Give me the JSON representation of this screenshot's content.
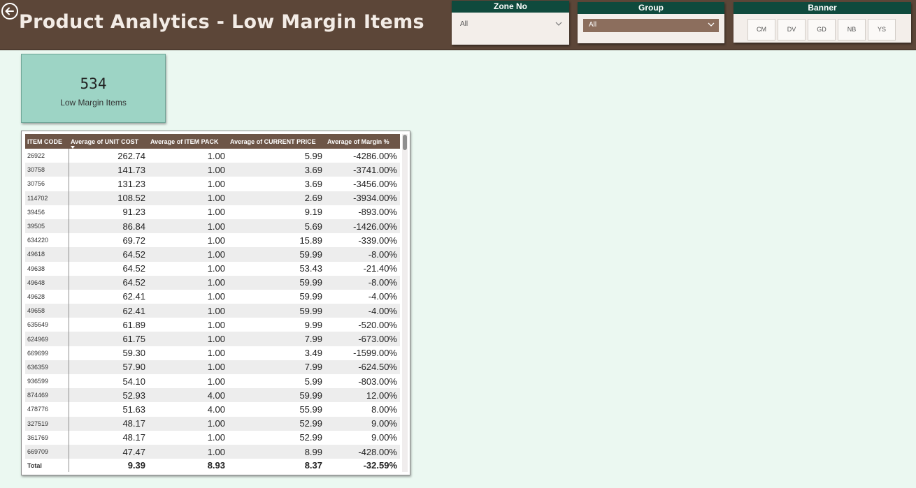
{
  "header": {
    "title": "Product Analytics - Low Margin Items"
  },
  "colors": {
    "header_bg": "#5c4638",
    "slicer_title_bg": "#0f4a3d",
    "kpi_bg": "#9dd4c5",
    "table_header_bg": "#6d5547",
    "page_bg": "#ebf8f1"
  },
  "icons": {
    "back": "arrow-left-circle-icon",
    "dropdown": "chevron-down-icon",
    "sort": "sort-descending-icon"
  },
  "zone_slicer": {
    "title": "Zone No",
    "value": "All"
  },
  "group_slicer": {
    "title": "Group",
    "value": "All"
  },
  "banner_slicer": {
    "title": "Banner",
    "buttons": [
      "CM",
      "DV",
      "GD",
      "NB",
      "YS"
    ]
  },
  "kpi": {
    "value": "534",
    "label": "Low Margin Items"
  },
  "table": {
    "headers": [
      "ITEM CODE",
      "Average of UNIT COST",
      "Average of ITEM PACK",
      "Average of CURRENT PRICE",
      "Average of Margin %"
    ],
    "rows": [
      [
        "26922",
        "262.74",
        "1.00",
        "5.99",
        "-4286.00%"
      ],
      [
        "30758",
        "141.73",
        "1.00",
        "3.69",
        "-3741.00%"
      ],
      [
        "30756",
        "131.23",
        "1.00",
        "3.69",
        "-3456.00%"
      ],
      [
        "114702",
        "108.52",
        "1.00",
        "2.69",
        "-3934.00%"
      ],
      [
        "39456",
        "91.23",
        "1.00",
        "9.19",
        "-893.00%"
      ],
      [
        "39505",
        "86.84",
        "1.00",
        "5.69",
        "-1426.00%"
      ],
      [
        "634220",
        "69.72",
        "1.00",
        "15.89",
        "-339.00%"
      ],
      [
        "49618",
        "64.52",
        "1.00",
        "59.99",
        "-8.00%"
      ],
      [
        "49638",
        "64.52",
        "1.00",
        "53.43",
        "-21.40%"
      ],
      [
        "49648",
        "64.52",
        "1.00",
        "59.99",
        "-8.00%"
      ],
      [
        "49628",
        "62.41",
        "1.00",
        "59.99",
        "-4.00%"
      ],
      [
        "49658",
        "62.41",
        "1.00",
        "59.99",
        "-4.00%"
      ],
      [
        "635649",
        "61.89",
        "1.00",
        "9.99",
        "-520.00%"
      ],
      [
        "624969",
        "61.75",
        "1.00",
        "7.99",
        "-673.00%"
      ],
      [
        "669699",
        "59.30",
        "1.00",
        "3.49",
        "-1599.00%"
      ],
      [
        "636359",
        "57.90",
        "1.00",
        "7.99",
        "-624.50%"
      ],
      [
        "936599",
        "54.10",
        "1.00",
        "5.99",
        "-803.00%"
      ],
      [
        "874469",
        "52.93",
        "4.00",
        "59.99",
        "12.00%"
      ],
      [
        "478776",
        "51.63",
        "4.00",
        "55.99",
        "8.00%"
      ],
      [
        "327519",
        "48.17",
        "1.00",
        "52.99",
        "9.00%"
      ],
      [
        "361769",
        "48.17",
        "1.00",
        "52.99",
        "9.00%"
      ],
      [
        "669709",
        "47.47",
        "1.00",
        "8.99",
        "-428.00%"
      ]
    ],
    "total": [
      "Total",
      "9.39",
      "8.93",
      "8.37",
      "-32.59%"
    ]
  }
}
